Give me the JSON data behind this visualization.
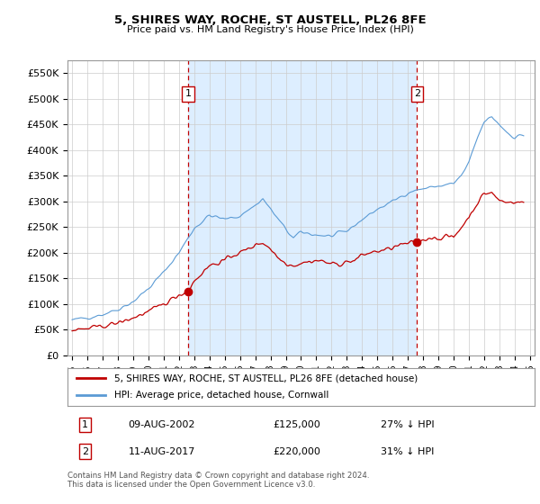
{
  "title": "5, SHIRES WAY, ROCHE, ST AUSTELL, PL26 8FE",
  "subtitle": "Price paid vs. HM Land Registry's House Price Index (HPI)",
  "ylabel_ticks": [
    "£0",
    "£50K",
    "£100K",
    "£150K",
    "£200K",
    "£250K",
    "£300K",
    "£350K",
    "£400K",
    "£450K",
    "£500K",
    "£550K"
  ],
  "ytick_values": [
    0,
    50000,
    100000,
    150000,
    200000,
    250000,
    300000,
    350000,
    400000,
    450000,
    500000,
    550000
  ],
  "ylim": [
    0,
    575000
  ],
  "xlim_start": 1994.7,
  "xlim_end": 2025.3,
  "transaction1_x": 2002.6,
  "transaction1_y": 125000,
  "transaction1_label": "1",
  "transaction1_date": "09-AUG-2002",
  "transaction1_price": "£125,000",
  "transaction1_hpi": "27% ↓ HPI",
  "transaction2_x": 2017.6,
  "transaction2_y": 220000,
  "transaction2_label": "2",
  "transaction2_date": "11-AUG-2017",
  "transaction2_price": "£220,000",
  "transaction2_hpi": "31% ↓ HPI",
  "hpi_color": "#5b9bd5",
  "price_color": "#c00000",
  "vline_color": "#c00000",
  "shade_color": "#ddeeff",
  "background_color": "#ffffff",
  "grid_color": "#cccccc",
  "legend_label_price": "5, SHIRES WAY, ROCHE, ST AUSTELL, PL26 8FE (detached house)",
  "legend_label_hpi": "HPI: Average price, detached house, Cornwall",
  "footer_text": "Contains HM Land Registry data © Crown copyright and database right 2024.\nThis data is licensed under the Open Government Licence v3.0."
}
